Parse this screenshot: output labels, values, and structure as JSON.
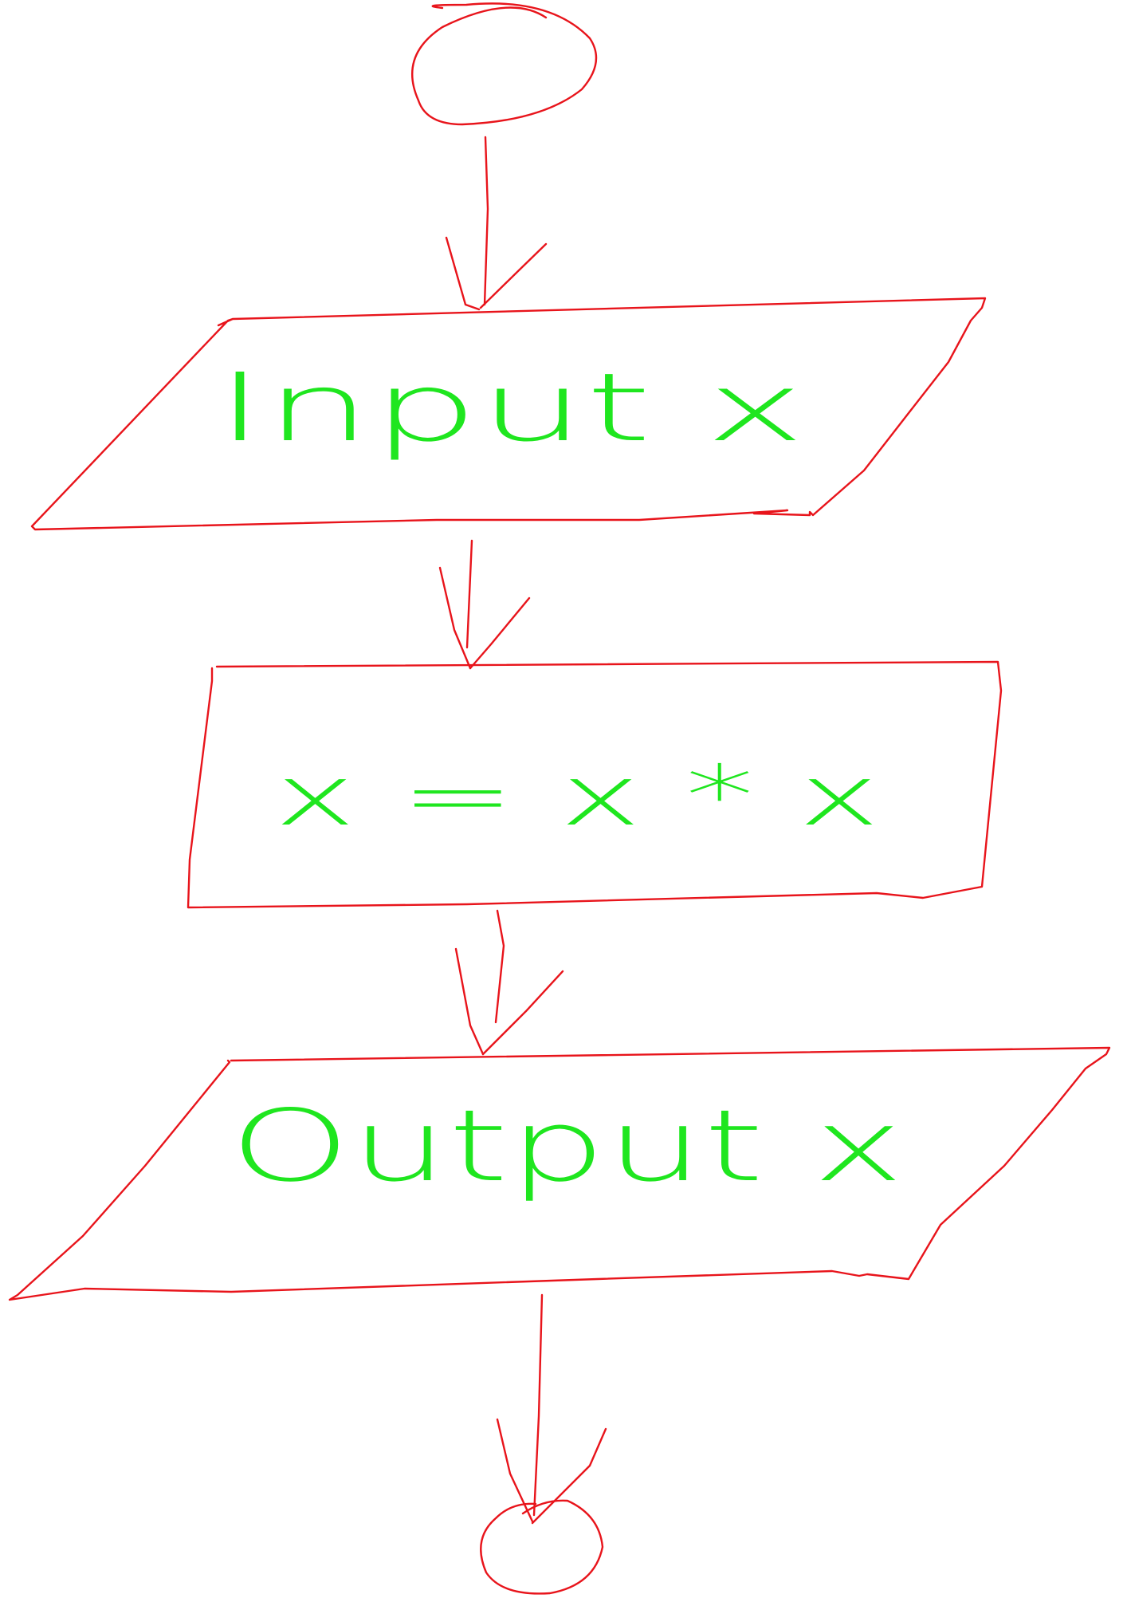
{
  "diagram": {
    "type": "flowchart",
    "colors": {
      "shape_stroke": "#e8141b",
      "text": "#1fe61f",
      "background": "#ffffff"
    },
    "nodes": [
      {
        "id": "start",
        "shape": "terminator",
        "text": ""
      },
      {
        "id": "input",
        "shape": "parallelogram",
        "text": "Input x"
      },
      {
        "id": "process",
        "shape": "rectangle",
        "text": "x = x * x"
      },
      {
        "id": "output",
        "shape": "parallelogram",
        "text": "Output x"
      },
      {
        "id": "end",
        "shape": "terminator",
        "text": ""
      }
    ],
    "edges": [
      {
        "from": "start",
        "to": "input"
      },
      {
        "from": "input",
        "to": "process"
      },
      {
        "from": "process",
        "to": "output"
      },
      {
        "from": "output",
        "to": "end"
      }
    ]
  }
}
